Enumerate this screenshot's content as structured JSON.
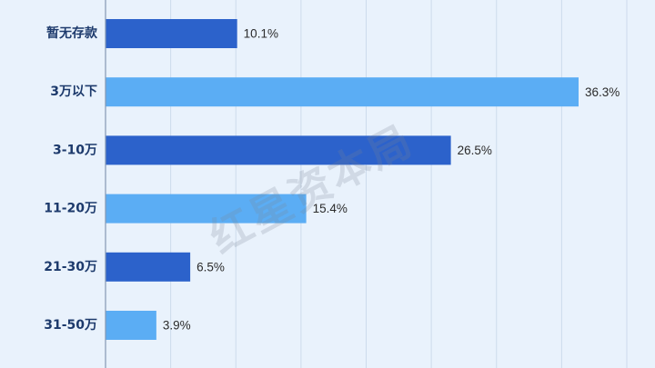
{
  "chart_data": {
    "type": "bar",
    "orientation": "horizontal",
    "categories": [
      "暂无存款",
      "3万以下",
      "3-10万",
      "11-20万",
      "21-30万",
      "31-50万"
    ],
    "values": [
      10.1,
      36.3,
      26.5,
      15.4,
      6.5,
      3.9
    ],
    "value_labels": [
      "10.1%",
      "36.3%",
      "26.5%",
      "15.4%",
      "6.5%",
      "3.9%"
    ],
    "unit": "%",
    "xlim": [
      0,
      40
    ],
    "grid": true,
    "grid_step": 5,
    "legend": "none"
  },
  "colors": {
    "background": "#e9f2fc",
    "bar_dark": "#2c62cb",
    "bar_light": "#5badf4",
    "category_label": "#1d3a6c",
    "value_label": "#2b2b2b",
    "grid": "#cddbec",
    "axis": "#8497b2",
    "watermark": "#7b8595"
  },
  "watermark": {
    "text": "红星资本局"
  }
}
